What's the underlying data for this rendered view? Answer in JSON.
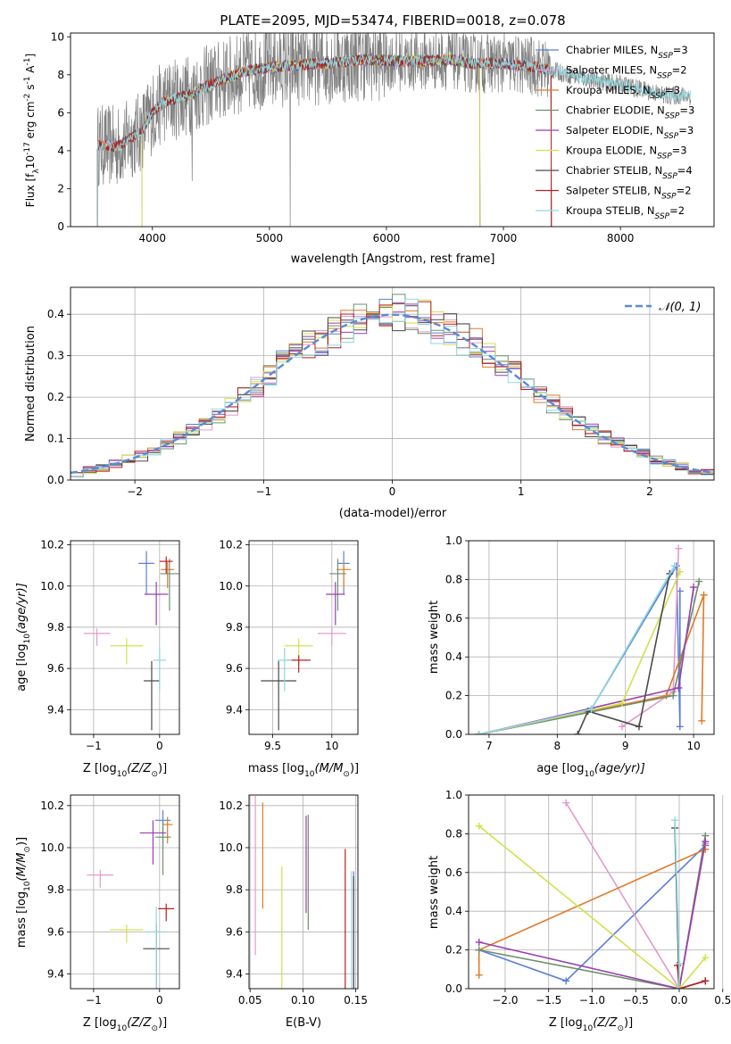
{
  "figure": {
    "title": "PLATE=2095, MJD=53474, FIBERID=0018, z=0.078"
  },
  "models": [
    {
      "name": "Chabrier MILES",
      "nssp": "3",
      "color": "#5b7fd6"
    },
    {
      "name": "Salpeter MILES",
      "nssp": "2",
      "color": "#e39acb"
    },
    {
      "name": "Kroupa MILES",
      "nssp": "3",
      "color": "#e07b28"
    },
    {
      "name": "Chabrier ELODIE",
      "nssp": "3",
      "color": "#6e8f6e"
    },
    {
      "name": "Salpeter ELODIE",
      "nssp": "3",
      "color": "#9a3fb0"
    },
    {
      "name": "Kroupa ELODIE",
      "nssp": "3",
      "color": "#d4e04a"
    },
    {
      "name": "Chabrier STELIB",
      "nssp": "4",
      "color": "#4a4a4a"
    },
    {
      "name": "Salpeter STELIB",
      "nssp": "2",
      "color": "#b82020"
    },
    {
      "name": "Kroupa STELIB",
      "nssp": "2",
      "color": "#8fd8e0"
    }
  ],
  "chart_data": [
    {
      "id": "spectrum",
      "type": "line",
      "xlabel": "wavelength [Angstrom, rest frame]",
      "ylabel_prefix": "Flux [f",
      "ylabel_sub": "λ",
      "ylabel_main": "10",
      "ylabel_exp": "-17",
      "ylabel_units": " erg cm",
      "ylabel_exp2": "-2",
      "ylabel_s": " s",
      "ylabel_exp3": "-1",
      "ylabel_end": " A",
      "ylabel_exp4": "-1",
      "ylabel_close": "]",
      "xlim": [
        3300,
        8800
      ],
      "ylim": [
        0,
        10.2
      ],
      "xticks": [
        4000,
        5000,
        6000,
        7000,
        8000
      ],
      "yticks": [
        0,
        2,
        4,
        6,
        8,
        10
      ],
      "legend_position": "right",
      "legend_prefix": "N",
      "legend_sub": "SSP",
      "data_color": "#808080",
      "continuum": [
        [
          3530,
          4.3
        ],
        [
          3700,
          4.2
        ],
        [
          3900,
          5.0
        ],
        [
          4000,
          6.0
        ],
        [
          4100,
          6.6
        ],
        [
          4300,
          6.9
        ],
        [
          4500,
          7.5
        ],
        [
          4800,
          8.2
        ],
        [
          5000,
          8.4
        ],
        [
          5200,
          8.5
        ],
        [
          5500,
          8.6
        ],
        [
          5800,
          8.8
        ],
        [
          6200,
          8.7
        ],
        [
          6560,
          8.8
        ],
        [
          6700,
          8.6
        ],
        [
          7000,
          8.6
        ],
        [
          7300,
          8.4
        ],
        [
          7500,
          8.1
        ],
        [
          7700,
          7.8
        ],
        [
          8000,
          7.5
        ],
        [
          8200,
          7.2
        ],
        [
          8400,
          6.9
        ],
        [
          8600,
          6.9
        ]
      ],
      "model_ranges": [
        [
          3530,
          7410
        ],
        [
          3530,
          7410
        ],
        [
          3530,
          7410
        ],
        [
          3910,
          6800
        ],
        [
          3910,
          6800
        ],
        [
          3910,
          6800
        ],
        [
          3530,
          7410
        ],
        [
          3530,
          7410
        ],
        [
          3530,
          8600
        ]
      ],
      "grid": false
    },
    {
      "id": "residuals",
      "type": "histogram",
      "xlabel": "(data-model)/error",
      "ylabel": "Normed distribution",
      "xlim": [
        -2.5,
        2.5
      ],
      "ylim": [
        0,
        0.465
      ],
      "xticks": [
        -2,
        -1,
        0,
        1,
        2
      ],
      "yticks": [
        0,
        0.1,
        0.2,
        0.3,
        0.4
      ],
      "legend_position": "upper right",
      "legend_label": "𝒩(0, 1)",
      "gauss_color": "#5b8bd4",
      "grid": true
    },
    {
      "id": "age-vs-z",
      "type": "scatter",
      "xlabel_prefix": "Z [log",
      "xlabel_sub": "10",
      "xlabel_body": "(Z/Z",
      "xlabel_sun": "⊙",
      "xlabel_close": ")]",
      "ylabel_prefix": "age  [log",
      "ylabel_sub": "10",
      "ylabel_body": "(age/yr)]",
      "xlim": [
        -1.35,
        0.3
      ],
      "ylim": [
        9.28,
        10.22
      ],
      "xticks": [
        -1,
        0
      ],
      "yticks": [
        9.4,
        9.6,
        9.8,
        10.0,
        10.2
      ],
      "points": [
        {
          "m": 0,
          "x": -0.2,
          "xe": 0.12,
          "y": 10.11,
          "ye": 0.05
        },
        {
          "m": 1,
          "x": -0.95,
          "xe": 0.2,
          "y": 9.77,
          "ye": 0.02
        },
        {
          "m": 2,
          "x": 0.12,
          "xe": 0.1,
          "y": 10.08,
          "ye": 0.03
        },
        {
          "m": 3,
          "x": 0.15,
          "xe": 0.14,
          "y": 10.06,
          "ye": 0.06
        },
        {
          "m": 4,
          "x": -0.05,
          "xe": 0.18,
          "y": 9.96,
          "ye": 0.05
        },
        {
          "m": 5,
          "x": -0.5,
          "xe": 0.25,
          "y": 9.71,
          "ye": 0.03
        },
        {
          "m": 6,
          "x": -0.12,
          "xe": 0.12,
          "y": 9.54,
          "ye": 0.08
        },
        {
          "m": 7,
          "x": 0.1,
          "xe": 0.1,
          "y": 10.12,
          "ye": 0.02
        },
        {
          "m": 8,
          "x": 0.0,
          "xe": 0.1,
          "y": 9.64,
          "ye": 0.05
        }
      ],
      "grid": true
    },
    {
      "id": "age-vs-mass",
      "type": "scatter",
      "xlabel_prefix": "mass [log",
      "xlabel_sub": "10",
      "xlabel_body": "(M/M",
      "xlabel_sun": "⊙",
      "xlabel_close": ")]",
      "ylabel_prefix": "",
      "xlim": [
        9.3,
        10.22
      ],
      "ylim": [
        9.28,
        10.22
      ],
      "xticks": [
        9.5,
        10.0
      ],
      "yticks": [
        9.4,
        9.6,
        9.8,
        10.0,
        10.2
      ],
      "points": [
        {
          "m": 0,
          "x": 10.1,
          "xe": 0.05,
          "y": 10.11,
          "ye": 0.05
        },
        {
          "m": 1,
          "x": 10.0,
          "xe": 0.12,
          "y": 9.77,
          "ye": 0.02
        },
        {
          "m": 2,
          "x": 10.1,
          "xe": 0.06,
          "y": 10.08,
          "ye": 0.03
        },
        {
          "m": 3,
          "x": 10.05,
          "xe": 0.07,
          "y": 10.06,
          "ye": 0.06
        },
        {
          "m": 4,
          "x": 10.03,
          "xe": 0.08,
          "y": 9.96,
          "ye": 0.05
        },
        {
          "m": 5,
          "x": 9.72,
          "xe": 0.12,
          "y": 9.71,
          "ye": 0.03
        },
        {
          "m": 6,
          "x": 9.55,
          "xe": 0.15,
          "y": 9.54,
          "ye": 0.08
        },
        {
          "m": 7,
          "x": 9.72,
          "xe": 0.1,
          "y": 9.64,
          "ye": 0.02
        },
        {
          "m": 8,
          "x": 9.6,
          "xe": 0.06,
          "y": 9.64,
          "ye": 0.05
        }
      ],
      "grid": true
    },
    {
      "id": "weight-vs-age",
      "type": "line",
      "xlabel_prefix": "age  [log",
      "xlabel_sub": "10",
      "xlabel_body": "(age/yr)]",
      "ylabel": "mass weight",
      "xlim": [
        6.7,
        10.3
      ],
      "ylim": [
        0,
        1.0
      ],
      "xticks": [
        7,
        8,
        9,
        10
      ],
      "yticks": [
        0,
        0.2,
        0.4,
        0.6,
        0.8,
        1.0
      ],
      "series": [
        {
          "m": 0,
          "x": [
            6.85,
            8.5,
            9.75,
            9.8,
            9.8
          ],
          "y": [
            0,
            0.13,
            0.87,
            0.04,
            0.74
          ]
        },
        {
          "m": 1,
          "x": [
            8.95,
            9.7,
            9.78
          ],
          "y": [
            0.04,
            0.22,
            0.96
          ]
        },
        {
          "m": 2,
          "x": [
            6.85,
            9.6,
            10.15,
            10.12
          ],
          "y": [
            0,
            0.2,
            0.72,
            0.07
          ]
        },
        {
          "m": 3,
          "x": [
            6.85,
            9.7,
            10.08
          ],
          "y": [
            0,
            0.2,
            0.79
          ]
        },
        {
          "m": 4,
          "x": [
            6.85,
            9.78,
            10.0
          ],
          "y": [
            0,
            0.24,
            0.76
          ]
        },
        {
          "m": 5,
          "x": [
            6.85,
            8.95,
            9.8
          ],
          "y": [
            0,
            0.16,
            0.84
          ]
        },
        {
          "m": 6,
          "x": [
            8.3,
            8.45,
            9.2,
            9.65
          ],
          "y": [
            0,
            0.12,
            0.04,
            0.83
          ]
        },
        {
          "m": 8,
          "x": [
            6.85,
            8.5,
            9.72
          ],
          "y": [
            0,
            0.13,
            0.87
          ]
        }
      ],
      "grid": true
    },
    {
      "id": "mass-vs-z",
      "type": "scatter",
      "xlabel_prefix": "Z [log",
      "xlabel_sub": "10",
      "xlabel_body": "(Z/Z",
      "xlabel_sun": "⊙",
      "xlabel_close": ")]",
      "ylabel_prefix": "mass [log",
      "ylabel_sub": "10",
      "ylabel_body": "(M/M",
      "ylabel_sun": "⊙",
      "ylabel_close": ")]",
      "xlim": [
        -1.35,
        0.3
      ],
      "ylim": [
        9.33,
        10.25
      ],
      "xticks": [
        -1,
        0
      ],
      "yticks": [
        9.4,
        9.6,
        9.8,
        10.0,
        10.2
      ],
      "points": [
        {
          "m": 0,
          "x": 0.05,
          "xe": 0.12,
          "y": 10.13,
          "ye": 0.04
        },
        {
          "m": 1,
          "x": -0.9,
          "xe": 0.2,
          "y": 9.87,
          "ye": 0.02
        },
        {
          "m": 2,
          "x": 0.12,
          "xe": 0.08,
          "y": 10.11,
          "ye": 0.03
        },
        {
          "m": 3,
          "x": 0.05,
          "xe": 0.12,
          "y": 10.05,
          "ye": 0.06
        },
        {
          "m": 4,
          "x": -0.1,
          "xe": 0.2,
          "y": 10.07,
          "ye": 0.05
        },
        {
          "m": 5,
          "x": -0.5,
          "xe": 0.25,
          "y": 9.61,
          "ye": 0.02
        },
        {
          "m": 6,
          "x": -0.05,
          "xe": 0.2,
          "y": 9.52,
          "ye": 0.1
        },
        {
          "m": 7,
          "x": 0.1,
          "xe": 0.12,
          "y": 9.71,
          "ye": 0.02
        },
        {
          "m": 8,
          "x": -0.05,
          "xe": 0.15,
          "y": 9.6,
          "ye": 0.1
        }
      ],
      "grid": true
    },
    {
      "id": "mass-vs-ebv",
      "type": "scatter",
      "xlabel": "E(B-V)",
      "ylabel_prefix": "",
      "xlim": [
        0.049,
        0.152
      ],
      "ylim": [
        9.33,
        10.25
      ],
      "xticks": [
        0.05,
        0.1,
        0.15
      ],
      "xtick_labels": [
        "0.05",
        "0.10",
        "0.15"
      ],
      "yticks": [
        9.4,
        9.6,
        9.8,
        10.0,
        10.2
      ],
      "points": [
        {
          "m": 0,
          "x": 0.148,
          "xe": 0,
          "y": 9.6,
          "ye": 0.24
        },
        {
          "m": 1,
          "x": 0.055,
          "xe": 0,
          "y": 10.03,
          "ye": 0.18
        },
        {
          "m": 2,
          "x": 0.062,
          "xe": 0,
          "y": 10.07,
          "ye": 0.12
        },
        {
          "m": 3,
          "x": 0.105,
          "xe": 0,
          "y": 10.0,
          "ye": 0.13
        },
        {
          "m": 4,
          "x": 0.103,
          "xe": 0,
          "y": 10.02,
          "ye": 0.11
        },
        {
          "m": 5,
          "x": 0.08,
          "xe": 0,
          "y": 9.67,
          "ye": 0.2
        },
        {
          "m": 6,
          "x": 0.148,
          "xe": 0,
          "y": 9.6,
          "ye": 0.22
        },
        {
          "m": 7,
          "x": 0.14,
          "xe": 0,
          "y": 9.73,
          "ye": 0.22
        },
        {
          "m": 8,
          "x": 0.146,
          "xe": 0,
          "y": 9.6,
          "ye": 0.24
        }
      ],
      "grid": true
    },
    {
      "id": "weight-vs-z",
      "type": "line",
      "xlabel_prefix": "Z [log",
      "xlabel_sub": "10",
      "xlabel_body": "(Z/Z",
      "xlabel_sun": "⊙",
      "xlabel_close": ")]",
      "ylabel": "mass weight",
      "xlim": [
        -2.42,
        0.4
      ],
      "ylim": [
        0,
        1.0
      ],
      "xticks": [
        -2.0,
        -1.5,
        -1.0,
        -0.5,
        0.0,
        0.5
      ],
      "xtick_labels": [
        "−2.0",
        "−1.5",
        "−1.0",
        "−0.5",
        "0.0",
        "0.5"
      ],
      "yticks": [
        0,
        0.2,
        0.4,
        0.6,
        0.8,
        1.0
      ],
      "series": [
        {
          "m": 0,
          "x": [
            -2.3,
            -1.3,
            0.3,
            0.3
          ],
          "y": [
            0.2,
            0.04,
            0.74,
            0.74
          ]
        },
        {
          "m": 1,
          "x": [
            -1.3,
            0.0,
            0.3
          ],
          "y": [
            0.96,
            0.0,
            0.75
          ]
        },
        {
          "m": 2,
          "x": [
            -2.3,
            -2.3,
            0.3
          ],
          "y": [
            0.07,
            0.2,
            0.72
          ]
        },
        {
          "m": 3,
          "x": [
            -2.3,
            0.0,
            0.3
          ],
          "y": [
            0.2,
            0.0,
            0.79
          ]
        },
        {
          "m": 4,
          "x": [
            -2.3,
            0.0,
            0.3
          ],
          "y": [
            0.24,
            0.0,
            0.76
          ]
        },
        {
          "m": 5,
          "x": [
            -2.3,
            0.0,
            0.3
          ],
          "y": [
            0.84,
            0.0,
            0.16
          ]
        },
        {
          "m": 6,
          "x": [
            -0.05,
            0.0,
            0.3
          ],
          "y": [
            0.83,
            0.0,
            0.04
          ]
        },
        {
          "m": 7,
          "x": [
            -0.02,
            0.0,
            0.3
          ],
          "y": [
            0.12,
            0.0,
            0.04
          ]
        },
        {
          "m": 8,
          "x": [
            -0.05,
            0.0,
            0.0
          ],
          "y": [
            0.87,
            0.13,
            0.0
          ]
        }
      ],
      "grid": true
    }
  ]
}
